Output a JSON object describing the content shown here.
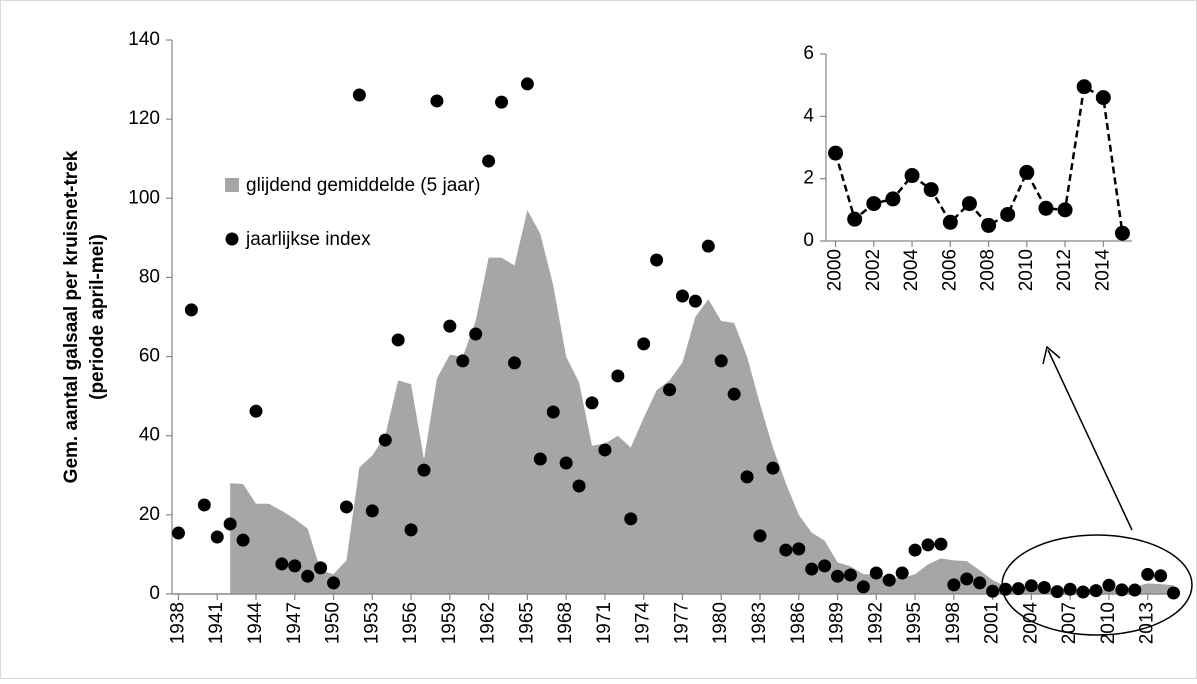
{
  "chart_data": [
    {
      "type": "area",
      "ylabel": [
        "Gem. aantal galsaal per kruisnet-trek",
        "(periode april-mei)"
      ],
      "x": [
        1938,
        1939,
        1940,
        1941,
        1942,
        1943,
        1944,
        1945,
        1946,
        1947,
        1948,
        1949,
        1950,
        1951,
        1952,
        1953,
        1954,
        1955,
        1956,
        1957,
        1958,
        1959,
        1960,
        1961,
        1962,
        1963,
        1964,
        1965,
        1966,
        1967,
        1968,
        1969,
        1970,
        1971,
        1972,
        1973,
        1974,
        1975,
        1976,
        1977,
        1978,
        1979,
        1980,
        1981,
        1982,
        1983,
        1984,
        1985,
        1986,
        1987,
        1988,
        1989,
        1990,
        1991,
        1992,
        1993,
        1994,
        1995,
        1996,
        1997,
        1998,
        1999,
        2000,
        2001,
        2002,
        2003,
        2004,
        2005,
        2006,
        2007,
        2008,
        2009,
        2010,
        2011,
        2012,
        2013,
        2014,
        2015
      ],
      "series": [
        {
          "name": "glijdend gemiddelde (5 jaar)",
          "type": "area",
          "color": "#a6a6a6",
          "values": [
            null,
            null,
            null,
            null,
            28,
            27.8,
            22.8,
            22.8,
            21,
            19,
            16.5,
            6,
            5,
            8.5,
            32,
            35,
            40,
            54,
            53,
            34,
            54.5,
            60.5,
            60,
            69,
            85,
            85,
            83,
            97,
            91,
            78,
            60,
            53.5,
            37.5,
            38,
            40,
            37,
            44.5,
            51.5,
            54,
            58.5,
            70,
            74.5,
            69,
            68.5,
            60,
            48,
            37,
            28,
            20,
            15.5,
            13.5,
            8,
            7,
            5,
            5,
            4,
            4,
            5,
            7.5,
            9,
            8.5,
            8.3,
            6,
            3.5,
            2,
            1.8,
            1.6,
            1.5,
            1.4,
            1.3,
            1.2,
            1.1,
            1.2,
            1.3,
            1.8,
            2.7,
            2.5,
            2.2
          ]
        },
        {
          "name": "jaarlijkse index",
          "type": "scatter",
          "color": "#000000",
          "values": [
            15.4,
            71.8,
            22.5,
            14.4,
            17.7,
            13.6,
            46.2,
            null,
            7.6,
            7.1,
            4.5,
            6.6,
            2.8,
            22,
            126.1,
            21,
            38.9,
            64.2,
            16.2,
            31.3,
            124.6,
            67.7,
            58.9,
            65.7,
            109.4,
            124.3,
            58.4,
            128.9,
            34.1,
            46,
            33.1,
            27.3,
            48.3,
            36.4,
            55.1,
            19,
            63.2,
            84.4,
            51.6,
            75.3,
            74,
            87.9,
            58.9,
            50.5,
            29.6,
            14.7,
            31.8,
            11.1,
            11.4,
            6.3,
            7.1,
            4.5,
            4.8,
            1.8,
            5.3,
            3.5,
            5.3,
            11.1,
            12.4,
            12.6,
            2.3,
            3.8,
            2.8,
            0.7,
            1.2,
            1.35,
            2.1,
            1.65,
            0.6,
            1.2,
            0.5,
            0.85,
            2.2,
            1.05,
            1.0,
            4.95,
            4.6,
            0.25
          ]
        }
      ],
      "xlim": [
        1937.5,
        2015.5
      ],
      "xticks": [
        1938,
        1941,
        1944,
        1947,
        1950,
        1953,
        1956,
        1959,
        1962,
        1965,
        1968,
        1971,
        1974,
        1977,
        1980,
        1983,
        1986,
        1989,
        1992,
        1995,
        1998,
        2001,
        2004,
        2007,
        2010,
        2013
      ],
      "ylim": [
        0,
        140
      ],
      "yticks": [
        0,
        20,
        40,
        60,
        80,
        100,
        120,
        140
      ],
      "grid": false,
      "legend": "upper-left"
    },
    {
      "type": "line",
      "x": [
        2000,
        2001,
        2002,
        2003,
        2004,
        2005,
        2006,
        2007,
        2008,
        2009,
        2010,
        2011,
        2012,
        2013,
        2014,
        2015
      ],
      "series": [
        {
          "name": "jaarlijkse index",
          "color": "#000000",
          "line_style": "dashed",
          "values": [
            2.82,
            0.7,
            1.2,
            1.35,
            2.1,
            1.65,
            0.6,
            1.2,
            0.5,
            0.85,
            2.2,
            1.05,
            1.0,
            4.95,
            4.6,
            0.25
          ]
        }
      ],
      "xlim": [
        1999.5,
        2015.5
      ],
      "xticks": [
        2000,
        2002,
        2004,
        2006,
        2008,
        2010,
        2012,
        2014
      ],
      "ylim": [
        0,
        6
      ],
      "yticks": [
        0,
        2,
        4,
        6
      ],
      "grid": false
    }
  ]
}
